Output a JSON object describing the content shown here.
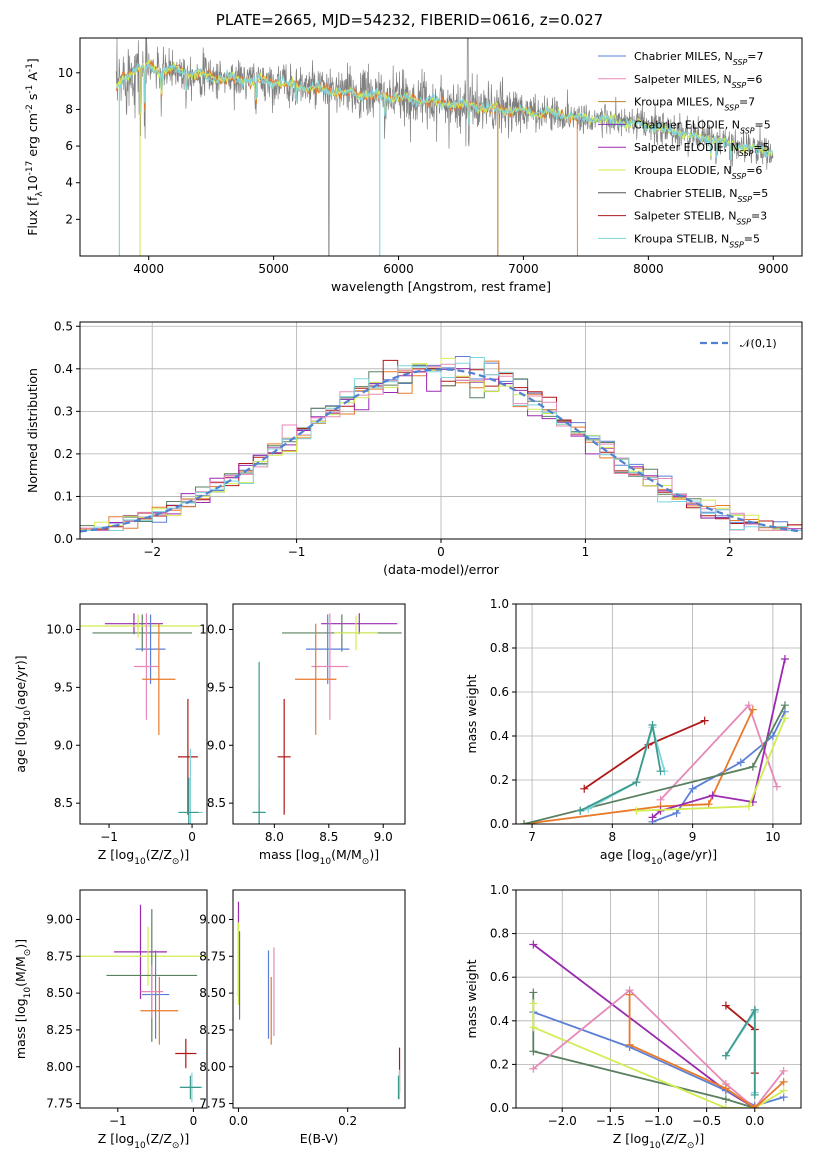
{
  "title": "PLATE=2665, MJD=54232, FIBERID=0616, z=0.027",
  "colors": {
    "chabrier_miles": "#5b7fd6",
    "salpeter_miles": "#e58ab8",
    "kroupa_miles": "#b8862e",
    "chabrier_elodie": "#8b2fb5",
    "salpeter_elodie": "#9a2ab0",
    "kroupa_elodie": "#d4e84a",
    "chabrier_stelib": "#555555",
    "salpeter_stelib": "#b01818",
    "kroupa_stelib": "#7fd4dc",
    "orange": "#e87a2a",
    "green": "#5a8060",
    "lime": "#d2ec52",
    "teal": "#3e9a8c",
    "gray": "#808080",
    "normal": "#4f82d0"
  },
  "chart_data": [
    {
      "id": "spectrum",
      "type": "line",
      "title": "PLATE=2665, MJD=54232, FIBERID=0616, z=0.027",
      "xlabel": "wavelength [Angstrom, rest frame]",
      "ylabel": "Flux [f$_\\lambda$10$^{-17}$ erg cm$^{-2}$ s$^{-1}$ A$^{-1}$]",
      "xlim": [
        3450,
        9230
      ],
      "ylim": [
        0,
        11.9
      ],
      "xticks": [
        4000,
        5000,
        6000,
        7000,
        8000,
        9000
      ],
      "yticks": [
        2,
        4,
        6,
        8,
        10
      ],
      "legend_loc": "upper right",
      "continuum": [
        [
          3740,
          9.0
        ],
        [
          3800,
          9.8
        ],
        [
          3900,
          10.2
        ],
        [
          4000,
          10.4
        ],
        [
          4100,
          10.0
        ],
        [
          4200,
          10.2
        ],
        [
          4400,
          9.9
        ],
        [
          4600,
          9.7
        ],
        [
          4800,
          9.6
        ],
        [
          5000,
          9.5
        ],
        [
          5200,
          9.3
        ],
        [
          5400,
          9.1
        ],
        [
          5600,
          8.9
        ],
        [
          5800,
          8.8
        ],
        [
          6000,
          8.6
        ],
        [
          6200,
          8.5
        ],
        [
          6400,
          8.3
        ],
        [
          6600,
          8.2
        ],
        [
          6800,
          8.0
        ],
        [
          7000,
          7.9
        ],
        [
          7200,
          7.8
        ],
        [
          7400,
          7.6
        ],
        [
          7600,
          7.5
        ],
        [
          7800,
          7.3
        ],
        [
          8000,
          7.1
        ],
        [
          8200,
          6.8
        ],
        [
          8400,
          6.5
        ],
        [
          8600,
          6.2
        ],
        [
          8800,
          5.9
        ],
        [
          9000,
          5.7
        ]
      ],
      "series": [
        {
          "name": "Chabrier MILES, N$_{SSP}$=7",
          "color": "#5b7fd6"
        },
        {
          "name": "Salpeter MILES, N$_{SSP}$=6",
          "color": "#e58ab8"
        },
        {
          "name": "Kroupa MILES, N$_{SSP}$=7",
          "color": "#b8862e"
        },
        {
          "name": "Chabrier ELODIE, N$_{SSP}$=5",
          "color": "#8b2fb5"
        },
        {
          "name": "Salpeter ELODIE, N$_{SSP}$=5",
          "color": "#9a2ab0"
        },
        {
          "name": "Kroupa ELODIE, N$_{SSP}$=6",
          "color": "#d4e84a"
        },
        {
          "name": "Chabrier STELIB, N$_{SSP}$=5",
          "color": "#555555"
        },
        {
          "name": "Salpeter STELIB, N$_{SSP}$=3",
          "color": "#b01818"
        },
        {
          "name": "Kroupa STELIB, N$_{SSP}$=5",
          "color": "#7fd4dc"
        }
      ]
    },
    {
      "id": "residuals",
      "type": "line",
      "xlabel": "(data-model)/error",
      "ylabel": "Normed distribution",
      "xlim": [
        -2.5,
        2.5
      ],
      "ylim": [
        0,
        0.51
      ],
      "xticks": [
        -2,
        -1,
        0,
        1,
        2
      ],
      "yticks": [
        0.0,
        0.1,
        0.2,
        0.3,
        0.4,
        0.5
      ],
      "grid": true,
      "legend_loc": "upper right",
      "legend": "$\\mathcal{N}(0,1)$",
      "normal_curve": {
        "mean": 0,
        "sigma": 1,
        "style": "dashed"
      },
      "hist_bin_width": 0.1,
      "hist_colors": [
        "#5b7fd6",
        "#e87a2a",
        "#5a8060",
        "#b01818",
        "#9a2ab0",
        "#d2ec52",
        "#e58ab8",
        "#7fd4dc"
      ]
    },
    {
      "id": "age_vs_Z",
      "type": "scatter",
      "xlabel": "Z [log$_{10}$(Z/Z$_\\odot$)]",
      "ylabel": "age  [log$_{10}$(age/yr)]",
      "xlim": [
        -1.35,
        0.18
      ],
      "ylim": [
        8.32,
        10.22
      ],
      "xticks": [
        -1,
        0
      ],
      "yticks": [
        8.5,
        9.0,
        9.5,
        10.0
      ],
      "points": [
        {
          "x": -0.7,
          "y": 10.05,
          "xerr": 0.35,
          "yerr": 0.09,
          "color": "#9a2ab0"
        },
        {
          "x": -0.6,
          "y": 9.97,
          "xerr": 0.6,
          "yerr": 0.16,
          "color": "#5a8060"
        },
        {
          "x": -0.65,
          "y": 10.03,
          "xerr": 0.75,
          "yerr": 0.1,
          "color": "#d2ec52"
        },
        {
          "x": -0.5,
          "y": 9.83,
          "xerr": 0.18,
          "yerr": 0.3,
          "color": "#5b7fd6"
        },
        {
          "x": -0.55,
          "y": 9.68,
          "xerr": 0.15,
          "yerr": 0.46,
          "color": "#e58ab8"
        },
        {
          "x": -0.4,
          "y": 9.57,
          "xerr": 0.2,
          "yerr": 0.48,
          "color": "#e87a2a"
        },
        {
          "x": -0.05,
          "y": 8.9,
          "xerr": 0.12,
          "yerr": 0.5,
          "color": "#b01818"
        },
        {
          "x": -0.02,
          "y": 8.42,
          "xerr": 0.15,
          "yerr": 0.55,
          "color": "#7fd4dc"
        },
        {
          "x": -0.04,
          "y": 8.42,
          "xerr": 0.12,
          "yerr": 0.3,
          "color": "#3e9a8c"
        }
      ]
    },
    {
      "id": "age_vs_mass",
      "type": "scatter",
      "xlabel": "mass [log$_{10}$(M/M$_\\odot$)]",
      "ylabel": "",
      "xlim": [
        7.62,
        9.2
      ],
      "ylim": [
        8.32,
        10.22
      ],
      "xticks": [
        8.0,
        8.5,
        9.0
      ],
      "yticks": [
        8.5,
        9.0,
        9.5,
        10.0
      ],
      "points": [
        {
          "x": 8.78,
          "y": 10.05,
          "xerr": 0.35,
          "yerr": 0.09,
          "color": "#9a2ab0"
        },
        {
          "x": 8.62,
          "y": 9.97,
          "xerr": 0.55,
          "yerr": 0.16,
          "color": "#5a8060"
        },
        {
          "x": 8.75,
          "y": 9.97,
          "xerr": 0.2,
          "yerr": 0.15,
          "color": "#d2ec52"
        },
        {
          "x": 8.49,
          "y": 9.83,
          "xerr": 0.2,
          "yerr": 0.3,
          "color": "#5b7fd6"
        },
        {
          "x": 8.51,
          "y": 9.68,
          "xerr": 0.17,
          "yerr": 0.46,
          "color": "#e58ab8"
        },
        {
          "x": 8.38,
          "y": 9.57,
          "xerr": 0.19,
          "yerr": 0.48,
          "color": "#e87a2a"
        },
        {
          "x": 8.09,
          "y": 8.9,
          "xerr": 0.06,
          "yerr": 0.5,
          "color": "#b01818"
        },
        {
          "x": 7.86,
          "y": 8.42,
          "xerr": 0.06,
          "yerr": 0.2,
          "color": "#7fd4dc"
        },
        {
          "x": 7.86,
          "y": 8.42,
          "xerr": 0.06,
          "yerr": 1.3,
          "color": "#3e9a8c"
        }
      ]
    },
    {
      "id": "weight_vs_age",
      "type": "line",
      "xlabel": "age  [log$_{10}$(age/yr)]",
      "ylabel": "mass weight",
      "xlim": [
        6.8,
        10.35
      ],
      "ylim": [
        0,
        1.0
      ],
      "xticks": [
        7,
        8,
        9,
        10
      ],
      "yticks": [
        0.0,
        0.2,
        0.4,
        0.6,
        0.8,
        1.0
      ],
      "grid": true,
      "series": [
        {
          "color": "#5b7fd6",
          "points": [
            [
              8.5,
              0.01
            ],
            [
              8.8,
              0.05
            ],
            [
              9.0,
              0.16
            ],
            [
              9.6,
              0.28
            ],
            [
              10.0,
              0.4
            ],
            [
              10.15,
              0.51
            ]
          ]
        },
        {
          "color": "#e58ab8",
          "points": [
            [
              8.6,
              0.11
            ],
            [
              9.7,
              0.54
            ],
            [
              10.05,
              0.17
            ]
          ]
        },
        {
          "color": "#e87a2a",
          "points": [
            [
              6.9,
              0.0
            ],
            [
              8.6,
              0.08
            ],
            [
              9.2,
              0.09
            ],
            [
              9.75,
              0.52
            ]
          ]
        },
        {
          "color": "#9a2ab0",
          "points": [
            [
              8.5,
              0.03
            ],
            [
              8.6,
              0.06
            ],
            [
              9.25,
              0.13
            ],
            [
              9.75,
              0.1
            ],
            [
              10.15,
              0.75
            ]
          ]
        },
        {
          "color": "#d2ec52",
          "points": [
            [
              8.3,
              0.06
            ],
            [
              9.7,
              0.08
            ],
            [
              10.15,
              0.48
            ]
          ]
        },
        {
          "color": "#5a8060",
          "points": [
            [
              6.9,
              0.0
            ],
            [
              9.75,
              0.26
            ],
            [
              10.15,
              0.54
            ]
          ]
        },
        {
          "color": "#b01818",
          "points": [
            [
              7.65,
              0.16
            ],
            [
              8.45,
              0.36
            ],
            [
              9.15,
              0.47
            ]
          ]
        },
        {
          "color": "#7fd4dc",
          "points": [
            [
              7.6,
              0.06
            ],
            [
              7.7,
              0.07
            ],
            [
              8.3,
              0.19
            ],
            [
              8.5,
              0.44
            ],
            [
              8.65,
              0.24
            ]
          ]
        },
        {
          "color": "#3e9a8c",
          "points": [
            [
              7.6,
              0.06
            ],
            [
              8.3,
              0.19
            ],
            [
              8.5,
              0.45
            ],
            [
              8.6,
              0.24
            ]
          ]
        }
      ]
    },
    {
      "id": "mass_vs_Z",
      "type": "scatter",
      "xlabel": "Z [log$_{10}$(Z/Z$_\\odot$)]",
      "ylabel": "mass [log$_{10}$(M/M$_\\odot$)]",
      "xlim": [
        -1.5,
        0.18
      ],
      "ylim": [
        7.72,
        9.2
      ],
      "xticks": [
        -1,
        0
      ],
      "yticks": [
        7.75,
        8.0,
        8.25,
        8.5,
        8.75,
        9.0
      ],
      "points": [
        {
          "x": -0.7,
          "y": 8.78,
          "xerr": 0.35,
          "yerr": 0.32,
          "color": "#9a2ab0"
        },
        {
          "x": -0.6,
          "y": 8.75,
          "xerr": 0.9,
          "yerr": 0.2,
          "color": "#d2ec52"
        },
        {
          "x": -0.55,
          "y": 8.62,
          "xerr": 0.6,
          "yerr": 0.45,
          "color": "#5a8060"
        },
        {
          "x": -0.5,
          "y": 8.49,
          "xerr": 0.18,
          "yerr": 0.3,
          "color": "#5b7fd6"
        },
        {
          "x": -0.55,
          "y": 8.51,
          "xerr": 0.15,
          "yerr": 0.18,
          "color": "#e58ab8"
        },
        {
          "x": -0.45,
          "y": 8.38,
          "xerr": 0.25,
          "yerr": 0.23,
          "color": "#e87a2a"
        },
        {
          "x": -0.1,
          "y": 8.09,
          "xerr": 0.14,
          "yerr": 0.1,
          "color": "#b01818"
        },
        {
          "x": -0.02,
          "y": 7.86,
          "xerr": 0.14,
          "yerr": 0.1,
          "color": "#7fd4dc"
        },
        {
          "x": -0.04,
          "y": 7.86,
          "xerr": 0.14,
          "yerr": 0.08,
          "color": "#3e9a8c"
        }
      ]
    },
    {
      "id": "mass_vs_ebv",
      "type": "scatter",
      "xlabel": "E(B-V)",
      "ylabel": "",
      "xlim": [
        -0.01,
        0.305
      ],
      "ylim": [
        7.72,
        9.2
      ],
      "xticks": [
        0.0,
        0.2
      ],
      "yticks": [
        7.75,
        8.0,
        8.25,
        8.5,
        8.75,
        9.0
      ],
      "points": [
        {
          "x": 0.0,
          "y": 8.8,
          "yerr": 0.32,
          "color": "#9a2ab0"
        },
        {
          "x": 0.0,
          "y": 8.7,
          "yerr": 0.28,
          "color": "#d2ec52"
        },
        {
          "x": 0.002,
          "y": 8.62,
          "yerr": 0.3,
          "color": "#5a8060"
        },
        {
          "x": 0.055,
          "y": 8.49,
          "yerr": 0.3,
          "color": "#5b7fd6"
        },
        {
          "x": 0.065,
          "y": 8.51,
          "yerr": 0.3,
          "color": "#e58ab8"
        },
        {
          "x": 0.06,
          "y": 8.38,
          "yerr": 0.23,
          "color": "#e87a2a"
        },
        {
          "x": 0.295,
          "y": 7.98,
          "yerr": 0.15,
          "color": "#b01818"
        },
        {
          "x": 0.295,
          "y": 7.88,
          "yerr": 0.1,
          "color": "#7fd4dc"
        },
        {
          "x": 0.293,
          "y": 7.86,
          "yerr": 0.08,
          "color": "#3e9a8c"
        }
      ]
    },
    {
      "id": "weight_vs_Z",
      "type": "line",
      "xlabel": "Z [log$_{10}$(Z/Z$_\\odot$)]",
      "ylabel": "mass weight",
      "xlim": [
        -2.48,
        0.48
      ],
      "ylim": [
        0,
        1.0
      ],
      "xticks": [
        -2.0,
        -1.5,
        -1.0,
        -0.5,
        0.0
      ],
      "yticks": [
        0.0,
        0.2,
        0.4,
        0.6,
        0.8,
        1.0
      ],
      "grid": true,
      "series": [
        {
          "color": "#9a2ab0",
          "points": [
            [
              -2.3,
              0.75
            ],
            [
              -0.3,
              0.08
            ],
            [
              0.0,
              0.0
            ]
          ]
        },
        {
          "color": "#5a8060",
          "points": [
            [
              -2.3,
              0.53
            ],
            [
              -2.3,
              0.26
            ],
            [
              -0.3,
              0.04
            ],
            [
              0.0,
              0.0
            ]
          ]
        },
        {
          "color": "#5b7fd6",
          "points": [
            [
              -2.3,
              0.44
            ],
            [
              -1.3,
              0.28
            ],
            [
              -0.3,
              0.08
            ],
            [
              0.0,
              0.01
            ],
            [
              0.3,
              0.05
            ]
          ]
        },
        {
          "color": "#d2ec52",
          "points": [
            [
              -2.3,
              0.48
            ],
            [
              -2.3,
              0.37
            ],
            [
              -0.3,
              0.0
            ],
            [
              0.0,
              0.0
            ],
            [
              0.3,
              0.08
            ]
          ]
        },
        {
          "color": "#e58ab8",
          "points": [
            [
              -2.3,
              0.18
            ],
            [
              -1.3,
              0.54
            ],
            [
              -0.3,
              0.11
            ],
            [
              0.0,
              0.0
            ],
            [
              0.3,
              0.17
            ]
          ]
        },
        {
          "color": "#e87a2a",
          "points": [
            [
              -1.3,
              0.52
            ],
            [
              -1.3,
              0.29
            ],
            [
              -0.3,
              0.09
            ],
            [
              0.0,
              0.0
            ],
            [
              0.3,
              0.12
            ]
          ]
        },
        {
          "color": "#b01818",
          "points": [
            [
              -0.3,
              0.47
            ],
            [
              0.0,
              0.36
            ],
            [
              0.0,
              0.16
            ]
          ]
        },
        {
          "color": "#7fd4dc",
          "points": [
            [
              -0.3,
              0.24
            ],
            [
              0.0,
              0.44
            ],
            [
              0.0,
              0.07
            ]
          ]
        },
        {
          "color": "#3e9a8c",
          "points": [
            [
              -0.3,
              0.24
            ],
            [
              0.0,
              0.45
            ],
            [
              0.0,
              0.06
            ]
          ]
        }
      ]
    }
  ]
}
